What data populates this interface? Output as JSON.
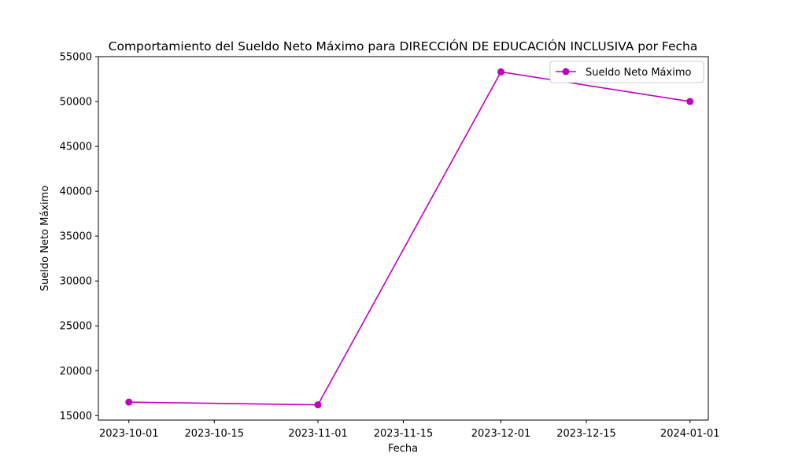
{
  "chart_data": {
    "type": "line",
    "title": "Comportamiento del Sueldo Neto Máximo para DIRECCIÓN DE EDUCACIÓN INCLUSIVA por Fecha",
    "xlabel": "Fecha",
    "ylabel": "Sueldo Neto Máximo",
    "x": [
      "2023-10-01",
      "2023-11-01",
      "2023-12-01",
      "2024-01-01"
    ],
    "series": [
      {
        "name": "Sueldo Neto Máximo",
        "values": [
          16500,
          16200,
          53300,
          50000
        ]
      }
    ],
    "xlim": [
      "2023-09-26",
      "2024-01-04"
    ],
    "ylim": [
      14500,
      55000
    ],
    "x_ticks": [
      "2023-10-01",
      "2023-10-15",
      "2023-11-01",
      "2023-11-15",
      "2023-12-01",
      "2023-12-15",
      "2024-01-01"
    ],
    "y_ticks": [
      15000,
      20000,
      25000,
      30000,
      35000,
      40000,
      45000,
      50000,
      55000
    ],
    "grid": false,
    "legend_position": "top-right",
    "colors": {
      "series": "#bf00bf",
      "axis": "#000000",
      "background": "#ffffff"
    },
    "marker": "circle"
  }
}
